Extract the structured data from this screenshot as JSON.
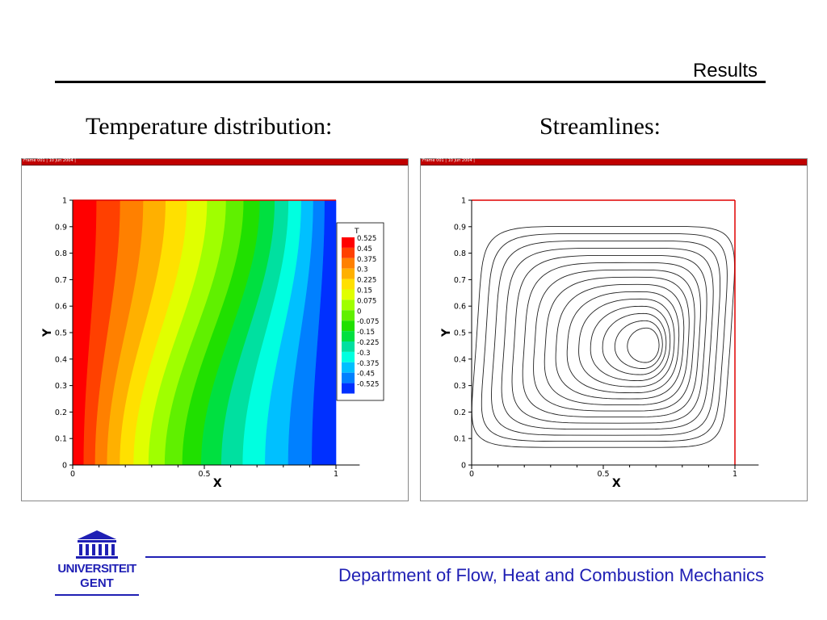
{
  "header": {
    "section_title": "Results"
  },
  "captions": {
    "left": "Temperature distribution:",
    "right": "Streamlines:"
  },
  "frames": {
    "left_bar": "Frame 001 | 10 Jun 2004 |",
    "right_bar": "Frame 001 | 10 Jun 2004 |"
  },
  "footer": {
    "department": "Department of Flow, Heat and Combustion Mechanics",
    "logo_line1": "UNIVERSITEIT",
    "logo_line2": "GENT"
  },
  "colors": {
    "footer_blue": "#1f1fb4",
    "frame_bar": "#c00000",
    "axis_red": "#e00000"
  },
  "chart_data": [
    {
      "type": "heatmap",
      "title": "",
      "xlabel": "X",
      "ylabel": "Y",
      "xlim": [
        0,
        1
      ],
      "ylim": [
        0,
        1
      ],
      "xticks": [
        "0",
        "0.5",
        "1"
      ],
      "yticks": [
        "0",
        "0.1",
        "0.2",
        "0.3",
        "0.4",
        "0.5",
        "0.6",
        "0.7",
        "0.8",
        "0.9",
        "1"
      ],
      "legend": {
        "title": "T",
        "placement": "right",
        "levels": [
          "0.525",
          "0.45",
          "0.375",
          "0.3",
          "0.225",
          "0.15",
          "0.075",
          "0",
          "-0.075",
          "-0.15",
          "-0.225",
          "-0.3",
          "-0.375",
          "-0.45",
          "-0.525"
        ],
        "colors": [
          "#ff0000",
          "#ff4000",
          "#ff8000",
          "#ffb000",
          "#ffe000",
          "#e0ff00",
          "#a0ff00",
          "#60f000",
          "#20e000",
          "#00e040",
          "#00e0a0",
          "#00ffe0",
          "#00c0ff",
          "#0080ff",
          "#0030ff"
        ]
      },
      "field": "temperature T decreasing from 0.525 at x=0 to -0.525 at x=1, isotherms tilted"
    },
    {
      "type": "line",
      "title": "",
      "xlabel": "X",
      "ylabel": "Y",
      "xlim": [
        0,
        1
      ],
      "ylim": [
        0,
        1
      ],
      "xticks": [
        "0",
        "0.5",
        "1"
      ],
      "yticks": [
        "0",
        "0.1",
        "0.2",
        "0.3",
        "0.4",
        "0.5",
        "0.6",
        "0.7",
        "0.8",
        "0.9",
        "1"
      ],
      "vortex_center": [
        0.67,
        0.45
      ],
      "contours": 15
    }
  ]
}
